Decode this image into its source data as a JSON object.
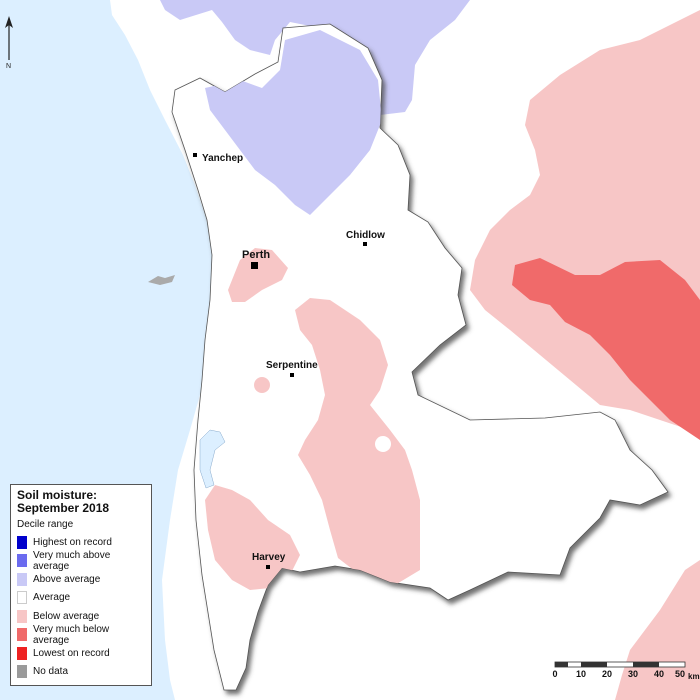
{
  "legend": {
    "title_line1": "Soil moisture:",
    "title_line2": "September 2018",
    "subtitle": "Decile range",
    "items": [
      {
        "label": "Highest on record",
        "color": "#0000cc"
      },
      {
        "label": "Very much above average",
        "color": "#6b6bef"
      },
      {
        "label": "Above average",
        "color": "#c9c9f6"
      },
      {
        "label": "Average",
        "color": "#ffffff"
      },
      {
        "label": "Below average",
        "color": "#f7c6c6"
      },
      {
        "label": "Very much below average",
        "color": "#f06a6a"
      },
      {
        "label": "Lowest on record",
        "color": "#ee2222"
      },
      {
        "label": "No data",
        "color": "#9a9a9a"
      }
    ]
  },
  "towns": [
    {
      "name": "Yanchep"
    },
    {
      "name": "Perth"
    },
    {
      "name": "Chidlow"
    },
    {
      "name": "Serpentine"
    },
    {
      "name": "Harvey"
    }
  ],
  "scale": {
    "ticks": [
      "0",
      "10",
      "20",
      "30",
      "40",
      "50"
    ],
    "unit": "km"
  },
  "north_label": "N",
  "colors": {
    "ocean": "#dcefff",
    "outside_land": "#ffffff",
    "shadow": "#555555"
  }
}
